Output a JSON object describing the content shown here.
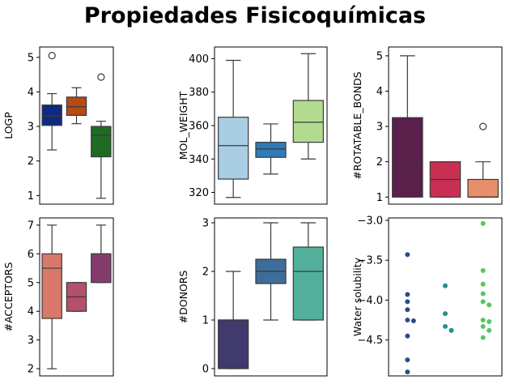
{
  "title": "Propiedades Fisicoquímicas",
  "chart_data": [
    {
      "type": "box",
      "ylabel": "LOGP",
      "ylim": [
        0.75,
        5.3
      ],
      "yticks": [
        1,
        2,
        3,
        4,
        5
      ],
      "grid": false,
      "boxes": [
        {
          "color": "#0e2a80",
          "whisker_low": 2.32,
          "q1": 3.03,
          "median": 3.3,
          "q3": 3.62,
          "whisker_high": 3.95,
          "outliers": [
            5.05
          ]
        },
        {
          "color": "#b84a14",
          "whisker_low": 3.08,
          "q1": 3.32,
          "median": 3.57,
          "q3": 3.85,
          "whisker_high": 4.12,
          "outliers": []
        },
        {
          "color": "#1e6b22",
          "whisker_low": 0.92,
          "q1": 2.12,
          "median": 2.75,
          "q3": 3.0,
          "whisker_high": 3.15,
          "outliers": [
            4.43
          ]
        }
      ]
    },
    {
      "type": "box",
      "ylabel": "MOL_WEIGHT",
      "ylim": [
        313,
        407
      ],
      "yticks": [
        320,
        340,
        360,
        380,
        400
      ],
      "grid": false,
      "boxes": [
        {
          "color": "#a9cde2",
          "whisker_low": 317,
          "q1": 328,
          "median": 348,
          "q3": 365,
          "whisker_high": 399,
          "outliers": []
        },
        {
          "color": "#2f7ab8",
          "whisker_low": 331,
          "q1": 341,
          "median": 346,
          "q3": 350,
          "whisker_high": 361,
          "outliers": []
        },
        {
          "color": "#b2db90",
          "whisker_low": 340,
          "q1": 350,
          "median": 362,
          "q3": 375,
          "whisker_high": 403,
          "outliers": []
        }
      ]
    },
    {
      "type": "box",
      "ylabel": "#ROTATABLE_BONDS",
      "ylim": [
        0.8,
        5.25
      ],
      "yticks": [
        1,
        2,
        3,
        4,
        5
      ],
      "grid": false,
      "boxes": [
        {
          "color": "#5a1f4a",
          "whisker_low": 1,
          "q1": 1,
          "median": 2,
          "q3": 3.25,
          "whisker_high": 5,
          "outliers": []
        },
        {
          "color": "#c92f52",
          "whisker_low": 1,
          "q1": 1,
          "median": 1.5,
          "q3": 2,
          "whisker_high": 2,
          "outliers": []
        },
        {
          "color": "#e98e6b",
          "whisker_low": 1,
          "q1": 1,
          "median": 1,
          "q3": 1.5,
          "whisker_high": 2,
          "outliers": [
            3
          ]
        }
      ]
    },
    {
      "type": "box",
      "ylabel": "#ACCEPTORS",
      "ylim": [
        1.75,
        7.25
      ],
      "yticks": [
        2,
        3,
        4,
        5,
        6,
        7
      ],
      "grid": false,
      "boxes": [
        {
          "color": "#d9786a",
          "whisker_low": 2,
          "q1": 3.75,
          "median": 5.5,
          "q3": 6,
          "whisker_high": 7,
          "outliers": []
        },
        {
          "color": "#b3506c",
          "whisker_low": 4,
          "q1": 4,
          "median": 4.5,
          "q3": 5,
          "whisker_high": 5,
          "outliers": []
        },
        {
          "color": "#853a6e",
          "whisker_low": 5,
          "q1": 5,
          "median": 6,
          "q3": 6,
          "whisker_high": 7,
          "outliers": []
        }
      ]
    },
    {
      "type": "box",
      "ylabel": "#DONORS",
      "ylim": [
        -0.15,
        3.1
      ],
      "yticks": [
        0,
        1,
        2,
        3
      ],
      "grid": false,
      "boxes": [
        {
          "color": "#413a6e",
          "whisker_low": 0,
          "q1": 0,
          "median": 1,
          "q3": 1,
          "whisker_high": 2,
          "outliers": []
        },
        {
          "color": "#3d6d9a",
          "whisker_low": 1,
          "q1": 1.75,
          "median": 2,
          "q3": 2.25,
          "whisker_high": 3,
          "outliers": []
        },
        {
          "color": "#52b09a",
          "whisker_low": 1,
          "q1": 1,
          "median": 2,
          "q3": 2.5,
          "whisker_high": 3,
          "outliers": []
        }
      ]
    },
    {
      "type": "swarm",
      "ylabel": "Water solubility",
      "ylim": [
        -4.95,
        -2.97
      ],
      "yticks": [
        -4.5,
        -4.0,
        -3.5,
        -3.0
      ],
      "ytick_labels": [
        "−4.5",
        "−4.0",
        "−3.5",
        "−3.0"
      ],
      "grid": false,
      "groups": [
        {
          "color": "#2d4b8a",
          "points": [
            -3.43,
            -3.93,
            -4.02,
            -4.12,
            -4.25,
            -4.26,
            -4.45,
            -4.75,
            -4.9
          ]
        },
        {
          "color": "#21918c",
          "points": [
            -3.82,
            -4.17,
            -4.33,
            -4.38
          ]
        },
        {
          "color": "#55c662",
          "points": [
            -3.04,
            -3.63,
            -3.8,
            -3.92,
            -4.02,
            -4.06,
            -4.25,
            -4.27,
            -4.33,
            -4.38,
            -4.47
          ]
        }
      ]
    }
  ]
}
